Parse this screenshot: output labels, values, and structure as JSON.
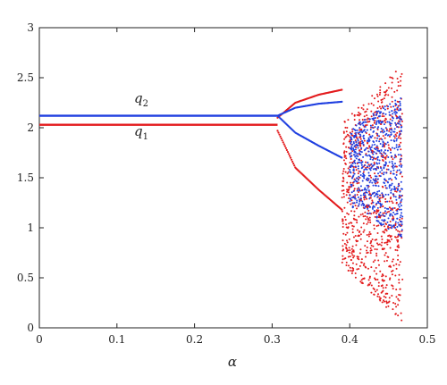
{
  "chart_data": {
    "type": "scatter",
    "title": "",
    "xlabel": "α",
    "ylabel": "",
    "xlim": [
      0,
      0.5
    ],
    "ylim": [
      0,
      3
    ],
    "x_ticks": [
      "0",
      "0.1",
      "0.2",
      "0.3",
      "0.4",
      "0.5"
    ],
    "y_ticks": [
      "0",
      "0.5",
      "1",
      "1.5",
      "2",
      "2.5",
      "3"
    ],
    "grid": false,
    "series": [
      {
        "name": "q1",
        "label_base": "q",
        "label_sub": "1",
        "color": "#e31a1c",
        "stable_value": 2.03,
        "bifurcation_alpha": 0.307,
        "alpha_max": 0.468,
        "period2_branches": [
          {
            "alpha": [
              0.307,
              0.33,
              0.36,
              0.39
            ],
            "value": [
              1.97,
              1.6,
              1.38,
              1.18
            ]
          },
          {
            "alpha": [
              0.307,
              0.33,
              0.36,
              0.39
            ],
            "value": [
              2.1,
              2.25,
              2.33,
              2.38
            ]
          }
        ],
        "chaotic_band": {
          "alpha_range": [
            0.39,
            0.468
          ],
          "value_range": [
            0.05,
            2.63
          ]
        }
      },
      {
        "name": "q2",
        "label_base": "q",
        "label_sub": "2",
        "color": "#1f3fe0",
        "stable_value": 2.12,
        "bifurcation_alpha": 0.307,
        "alpha_max": 0.468,
        "period2_branches": [
          {
            "alpha": [
              0.307,
              0.33,
              0.36,
              0.39
            ],
            "value": [
              2.12,
              1.95,
              1.82,
              1.7
            ]
          },
          {
            "alpha": [
              0.307,
              0.33,
              0.36,
              0.39
            ],
            "value": [
              2.12,
              2.2,
              2.24,
              2.26
            ]
          }
        ],
        "chaotic_band": {
          "alpha_range": [
            0.4,
            0.468
          ],
          "value_range": [
            0.9,
            2.32
          ]
        }
      }
    ]
  }
}
